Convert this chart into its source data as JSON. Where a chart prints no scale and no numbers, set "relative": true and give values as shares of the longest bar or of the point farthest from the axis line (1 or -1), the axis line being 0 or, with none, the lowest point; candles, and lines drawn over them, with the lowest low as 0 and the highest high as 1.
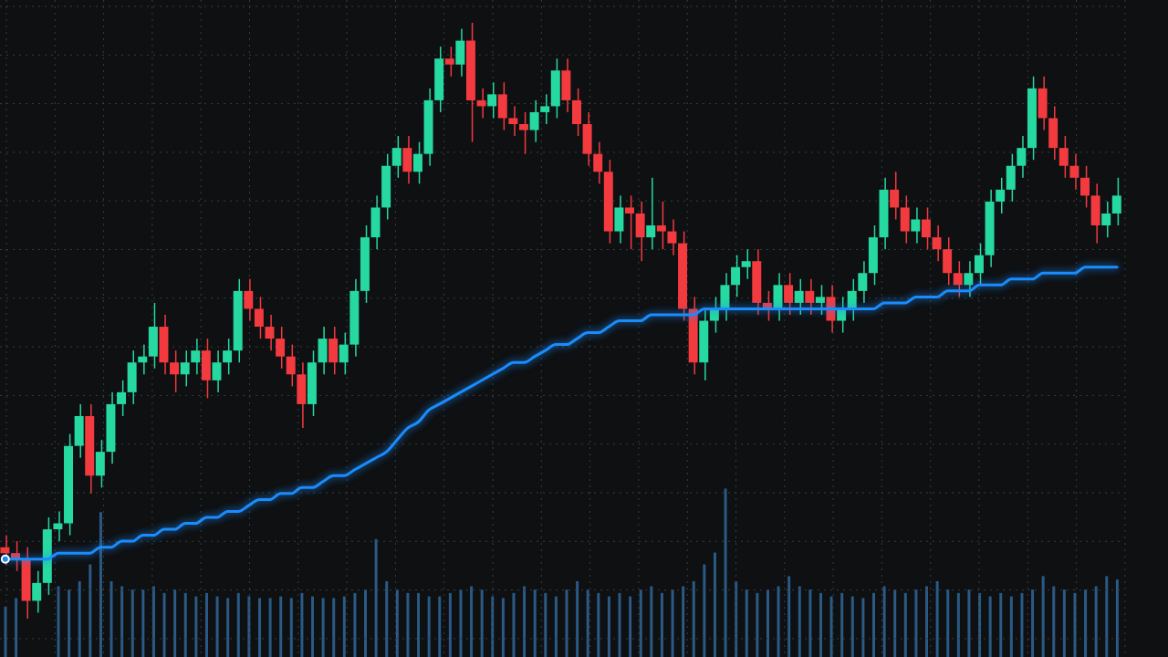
{
  "chart_data": [
    {
      "type": "candlestick",
      "relative": true,
      "grid": true,
      "tick_labels": false,
      "categories": [
        null,
        null,
        null,
        null,
        null,
        null,
        null,
        null,
        null,
        null,
        null,
        null,
        null,
        null,
        null,
        null,
        null,
        null,
        null,
        null,
        null,
        null,
        null,
        null,
        null,
        null,
        null,
        null,
        null,
        null,
        null,
        null,
        null,
        null,
        null,
        null,
        null,
        null,
        null,
        null,
        null,
        null,
        null,
        null,
        null,
        null,
        null,
        null,
        null,
        null,
        null,
        null,
        null,
        null,
        null,
        null,
        null,
        null,
        null,
        null,
        null,
        null,
        null,
        null,
        null,
        null,
        null,
        null,
        null,
        null,
        null,
        null,
        null,
        null,
        null,
        null,
        null,
        null,
        null,
        null,
        null,
        null,
        null,
        null,
        null,
        null,
        null,
        null,
        null,
        null,
        null,
        null,
        null,
        null,
        null,
        null,
        null,
        null,
        null,
        null,
        null,
        null,
        null,
        null,
        null,
        null
      ],
      "ohlc": [
        [
          0.12,
          0.14,
          0.09,
          0.11
        ],
        [
          0.11,
          0.13,
          0.08,
          0.1
        ],
        [
          0.1,
          0.12,
          0,
          0.03
        ],
        [
          0.03,
          0.08,
          0.01,
          0.06
        ],
        [
          0.06,
          0.17,
          0.04,
          0.15
        ],
        [
          0.15,
          0.18,
          0.13,
          0.16
        ],
        [
          0.16,
          0.31,
          0.14,
          0.29
        ],
        [
          0.29,
          0.36,
          0.27,
          0.34
        ],
        [
          0.34,
          0.36,
          0.21,
          0.24
        ],
        [
          0.24,
          0.3,
          0.22,
          0.28
        ],
        [
          0.28,
          0.38,
          0.26,
          0.36
        ],
        [
          0.36,
          0.4,
          0.34,
          0.38
        ],
        [
          0.38,
          0.45,
          0.36,
          0.43
        ],
        [
          0.43,
          0.46,
          0.41,
          0.44
        ],
        [
          0.44,
          0.53,
          0.42,
          0.49
        ],
        [
          0.49,
          0.51,
          0.41,
          0.43
        ],
        [
          0.43,
          0.45,
          0.38,
          0.41
        ],
        [
          0.41,
          0.45,
          0.39,
          0.43
        ],
        [
          0.43,
          0.47,
          0.41,
          0.45
        ],
        [
          0.45,
          0.47,
          0.37,
          0.4
        ],
        [
          0.4,
          0.45,
          0.38,
          0.43
        ],
        [
          0.43,
          0.47,
          0.41,
          0.45
        ],
        [
          0.45,
          0.57,
          0.43,
          0.55
        ],
        [
          0.55,
          0.57,
          0.5,
          0.52
        ],
        [
          0.52,
          0.54,
          0.47,
          0.49
        ],
        [
          0.49,
          0.51,
          0.45,
          0.47
        ],
        [
          0.47,
          0.49,
          0.42,
          0.44
        ],
        [
          0.44,
          0.46,
          0.39,
          0.41
        ],
        [
          0.41,
          0.43,
          0.32,
          0.36
        ],
        [
          0.36,
          0.45,
          0.34,
          0.43
        ],
        [
          0.43,
          0.49,
          0.41,
          0.47
        ],
        [
          0.47,
          0.49,
          0.41,
          0.43
        ],
        [
          0.43,
          0.48,
          0.41,
          0.46
        ],
        [
          0.46,
          0.57,
          0.44,
          0.55
        ],
        [
          0.55,
          0.66,
          0.53,
          0.64
        ],
        [
          0.64,
          0.71,
          0.62,
          0.69
        ],
        [
          0.69,
          0.78,
          0.67,
          0.76
        ],
        [
          0.76,
          0.81,
          0.74,
          0.79
        ],
        [
          0.79,
          0.81,
          0.73,
          0.75
        ],
        [
          0.75,
          0.8,
          0.73,
          0.78
        ],
        [
          0.78,
          0.89,
          0.76,
          0.87
        ],
        [
          0.87,
          0.96,
          0.85,
          0.94
        ],
        [
          0.94,
          0.96,
          0.91,
          0.93
        ],
        [
          0.93,
          0.99,
          0.91,
          0.97
        ],
        [
          0.97,
          1,
          0.8,
          0.87
        ],
        [
          0.87,
          0.89,
          0.84,
          0.86
        ],
        [
          0.86,
          0.9,
          0.84,
          0.88
        ],
        [
          0.88,
          0.9,
          0.82,
          0.84
        ],
        [
          0.84,
          0.86,
          0.81,
          0.83
        ],
        [
          0.83,
          0.85,
          0.78,
          0.82
        ],
        [
          0.82,
          0.87,
          0.8,
          0.85
        ],
        [
          0.85,
          0.88,
          0.83,
          0.86
        ],
        [
          0.86,
          0.94,
          0.84,
          0.92
        ],
        [
          0.92,
          0.94,
          0.85,
          0.87
        ],
        [
          0.87,
          0.89,
          0.81,
          0.83
        ],
        [
          0.83,
          0.85,
          0.76,
          0.78
        ],
        [
          0.78,
          0.8,
          0.73,
          0.75
        ],
        [
          0.75,
          0.77,
          0.63,
          0.65
        ],
        [
          0.65,
          0.71,
          0.63,
          0.69
        ],
        [
          0.69,
          0.71,
          0.62,
          0.68
        ],
        [
          0.68,
          0.7,
          0.6,
          0.64
        ],
        [
          0.64,
          0.74,
          0.62,
          0.66
        ],
        [
          0.66,
          0.7,
          0.62,
          0.65
        ],
        [
          0.65,
          0.67,
          0.61,
          0.63
        ],
        [
          0.63,
          0.65,
          0.5,
          0.52
        ],
        [
          0.52,
          0.54,
          0.41,
          0.43
        ],
        [
          0.43,
          0.52,
          0.4,
          0.5
        ],
        [
          0.5,
          0.54,
          0.48,
          0.52
        ],
        [
          0.52,
          0.58,
          0.5,
          0.56
        ],
        [
          0.56,
          0.61,
          0.54,
          0.59
        ],
        [
          0.59,
          0.62,
          0.57,
          0.6
        ],
        [
          0.6,
          0.62,
          0.51,
          0.53
        ],
        [
          0.53,
          0.55,
          0.5,
          0.52
        ],
        [
          0.52,
          0.58,
          0.5,
          0.56
        ],
        [
          0.56,
          0.58,
          0.51,
          0.53
        ],
        [
          0.53,
          0.57,
          0.51,
          0.55
        ],
        [
          0.55,
          0.57,
          0.51,
          0.53
        ],
        [
          0.53,
          0.56,
          0.51,
          0.54
        ],
        [
          0.54,
          0.56,
          0.48,
          0.5
        ],
        [
          0.5,
          0.54,
          0.48,
          0.52
        ],
        [
          0.52,
          0.57,
          0.5,
          0.55
        ],
        [
          0.55,
          0.6,
          0.53,
          0.58
        ],
        [
          0.58,
          0.66,
          0.56,
          0.64
        ],
        [
          0.64,
          0.74,
          0.62,
          0.72
        ],
        [
          0.72,
          0.75,
          0.67,
          0.69
        ],
        [
          0.69,
          0.71,
          0.63,
          0.65
        ],
        [
          0.65,
          0.69,
          0.63,
          0.67
        ],
        [
          0.67,
          0.69,
          0.62,
          0.64
        ],
        [
          0.64,
          0.66,
          0.6,
          0.62
        ],
        [
          0.62,
          0.64,
          0.56,
          0.58
        ],
        [
          0.58,
          0.6,
          0.54,
          0.56
        ],
        [
          0.56,
          0.6,
          0.54,
          0.58
        ],
        [
          0.58,
          0.63,
          0.56,
          0.61
        ],
        [
          0.61,
          0.72,
          0.59,
          0.7
        ],
        [
          0.7,
          0.74,
          0.68,
          0.72
        ],
        [
          0.72,
          0.78,
          0.7,
          0.76
        ],
        [
          0.76,
          0.81,
          0.74,
          0.79
        ],
        [
          0.79,
          0.91,
          0.77,
          0.89
        ],
        [
          0.89,
          0.91,
          0.82,
          0.84
        ],
        [
          0.84,
          0.86,
          0.77,
          0.79
        ],
        [
          0.79,
          0.81,
          0.74,
          0.76
        ],
        [
          0.76,
          0.78,
          0.72,
          0.74
        ],
        [
          0.74,
          0.76,
          0.69,
          0.71
        ],
        [
          0.71,
          0.73,
          0.63,
          0.66
        ],
        [
          0.66,
          0.7,
          0.64,
          0.68
        ],
        [
          0.68,
          0.74,
          0.66,
          0.71
        ]
      ],
      "colors": [
        "#f23a3f",
        "#f23a3f",
        "#f23a3f",
        "#26d9a0",
        "#26d9a0",
        "#26d9a0",
        "#26d9a0",
        "#26d9a0",
        "#f23a3f",
        "#26d9a0",
        "#26d9a0",
        "#26d9a0",
        "#26d9a0",
        "#26d9a0",
        "#26d9a0",
        "#f23a3f",
        "#f23a3f",
        "#26d9a0",
        "#26d9a0",
        "#f23a3f",
        "#26d9a0",
        "#26d9a0",
        "#26d9a0",
        "#f23a3f",
        "#f23a3f",
        "#f23a3f",
        "#f23a3f",
        "#f23a3f",
        "#f23a3f",
        "#26d9a0",
        "#26d9a0",
        "#f23a3f",
        "#26d9a0",
        "#26d9a0",
        "#26d9a0",
        "#26d9a0",
        "#26d9a0",
        "#26d9a0",
        "#f23a3f",
        "#26d9a0",
        "#26d9a0",
        "#26d9a0",
        "#f23a3f",
        "#26d9a0",
        "#f23a3f",
        "#f23a3f",
        "#26d9a0",
        "#f23a3f",
        "#f23a3f",
        "#f23a3f",
        "#26d9a0",
        "#26d9a0",
        "#26d9a0",
        "#f23a3f",
        "#f23a3f",
        "#f23a3f",
        "#f23a3f",
        "#f23a3f",
        "#26d9a0",
        "#f23a3f",
        "#f23a3f",
        "#26d9a0",
        "#f23a3f",
        "#f23a3f",
        "#f23a3f",
        "#f23a3f",
        "#26d9a0",
        "#26d9a0",
        "#26d9a0",
        "#26d9a0",
        "#26d9a0",
        "#f23a3f",
        "#f23a3f",
        "#26d9a0",
        "#f23a3f",
        "#26d9a0",
        "#f23a3f",
        "#26d9a0",
        "#f23a3f",
        "#26d9a0",
        "#26d9a0",
        "#26d9a0",
        "#26d9a0",
        "#26d9a0",
        "#f23a3f",
        "#f23a3f",
        "#26d9a0",
        "#f23a3f",
        "#f23a3f",
        "#f23a3f",
        "#f23a3f",
        "#26d9a0",
        "#26d9a0",
        "#26d9a0",
        "#26d9a0",
        "#26d9a0",
        "#26d9a0",
        "#26d9a0",
        "#f23a3f",
        "#f23a3f",
        "#f23a3f",
        "#f23a3f",
        "#f23a3f",
        "#f23a3f",
        "#26d9a0",
        "#26d9a0"
      ],
      "series": [
        {
          "type": "line",
          "color": "#1a8cff",
          "values": [
            0.1,
            0.1,
            0.1,
            0.1,
            0.1,
            0.11,
            0.11,
            0.11,
            0.11,
            0.12,
            0.12,
            0.13,
            0.13,
            0.14,
            0.14,
            0.15,
            0.15,
            0.16,
            0.16,
            0.17,
            0.17,
            0.18,
            0.18,
            0.19,
            0.2,
            0.2,
            0.21,
            0.21,
            0.22,
            0.22,
            0.23,
            0.24,
            0.24,
            0.25,
            0.26,
            0.27,
            0.28,
            0.3,
            0.32,
            0.33,
            0.35,
            0.36,
            0.37,
            0.38,
            0.39,
            0.4,
            0.41,
            0.42,
            0.43,
            0.43,
            0.44,
            0.45,
            0.46,
            0.46,
            0.47,
            0.48,
            0.48,
            0.49,
            0.5,
            0.5,
            0.5,
            0.51,
            0.51,
            0.51,
            0.51,
            0.51,
            0.52,
            0.52,
            0.52,
            0.52,
            0.52,
            0.52,
            0.52,
            0.52,
            0.52,
            0.52,
            0.52,
            0.52,
            0.52,
            0.52,
            0.52,
            0.52,
            0.52,
            0.53,
            0.53,
            0.53,
            0.54,
            0.54,
            0.54,
            0.55,
            0.55,
            0.55,
            0.56,
            0.56,
            0.56,
            0.57,
            0.57,
            0.57,
            0.58,
            0.58,
            0.58,
            0.58,
            0.59,
            0.59,
            0.59,
            0.59
          ]
        }
      ]
    },
    {
      "type": "bar",
      "relative": true,
      "tick_labels": false,
      "categories": [
        null,
        null,
        null,
        null,
        null,
        null,
        null,
        null,
        null,
        null,
        null,
        null,
        null,
        null,
        null,
        null,
        null,
        null,
        null,
        null,
        null,
        null,
        null,
        null,
        null,
        null,
        null,
        null,
        null,
        null,
        null,
        null,
        null,
        null,
        null,
        null,
        null,
        null,
        null,
        null,
        null,
        null,
        null,
        null,
        null,
        null,
        null,
        null,
        null,
        null,
        null,
        null,
        null,
        null,
        null,
        null,
        null,
        null,
        null,
        null,
        null,
        null,
        null,
        null,
        null,
        null,
        null,
        null,
        null,
        null,
        null,
        null,
        null,
        null,
        null,
        null,
        null,
        null,
        null,
        null,
        null,
        null,
        null,
        null,
        null,
        null,
        null,
        null,
        null,
        null,
        null,
        null,
        null,
        null,
        null,
        null,
        null,
        null,
        null,
        null,
        null,
        null,
        null,
        null,
        null,
        null
      ],
      "color": "#2a5a85",
      "values": [
        0.3,
        0.35,
        null,
        null,
        null,
        0.42,
        0.4,
        0.45,
        0.55,
        0.86,
        0.45,
        0.42,
        0.4,
        0.4,
        0.42,
        0.38,
        0.4,
        0.38,
        0.36,
        0.38,
        0.36,
        0.35,
        0.38,
        0.36,
        0.35,
        0.35,
        0.36,
        0.35,
        0.38,
        0.36,
        0.35,
        0.35,
        0.36,
        0.38,
        0.4,
        0.7,
        0.45,
        0.4,
        0.38,
        0.38,
        0.36,
        0.36,
        0.38,
        0.4,
        0.42,
        0.4,
        0.36,
        0.35,
        0.38,
        0.42,
        0.4,
        0.38,
        0.36,
        0.4,
        0.45,
        0.4,
        0.38,
        0.36,
        0.38,
        0.36,
        0.4,
        0.42,
        0.38,
        0.4,
        0.42,
        0.45,
        0.55,
        0.62,
        1,
        0.45,
        0.4,
        0.38,
        0.4,
        0.42,
        0.48,
        0.42,
        0.4,
        0.38,
        0.36,
        0.38,
        0.36,
        0.35,
        0.38,
        0.42,
        0.4,
        0.38,
        0.4,
        0.42,
        0.45,
        0.4,
        0.38,
        0.4,
        0.38,
        0.36,
        0.38,
        0.36,
        0.38,
        0.4,
        0.48,
        0.42,
        0.4,
        0.38,
        0.4,
        0.42,
        0.48,
        0.46
      ]
    }
  ]
}
